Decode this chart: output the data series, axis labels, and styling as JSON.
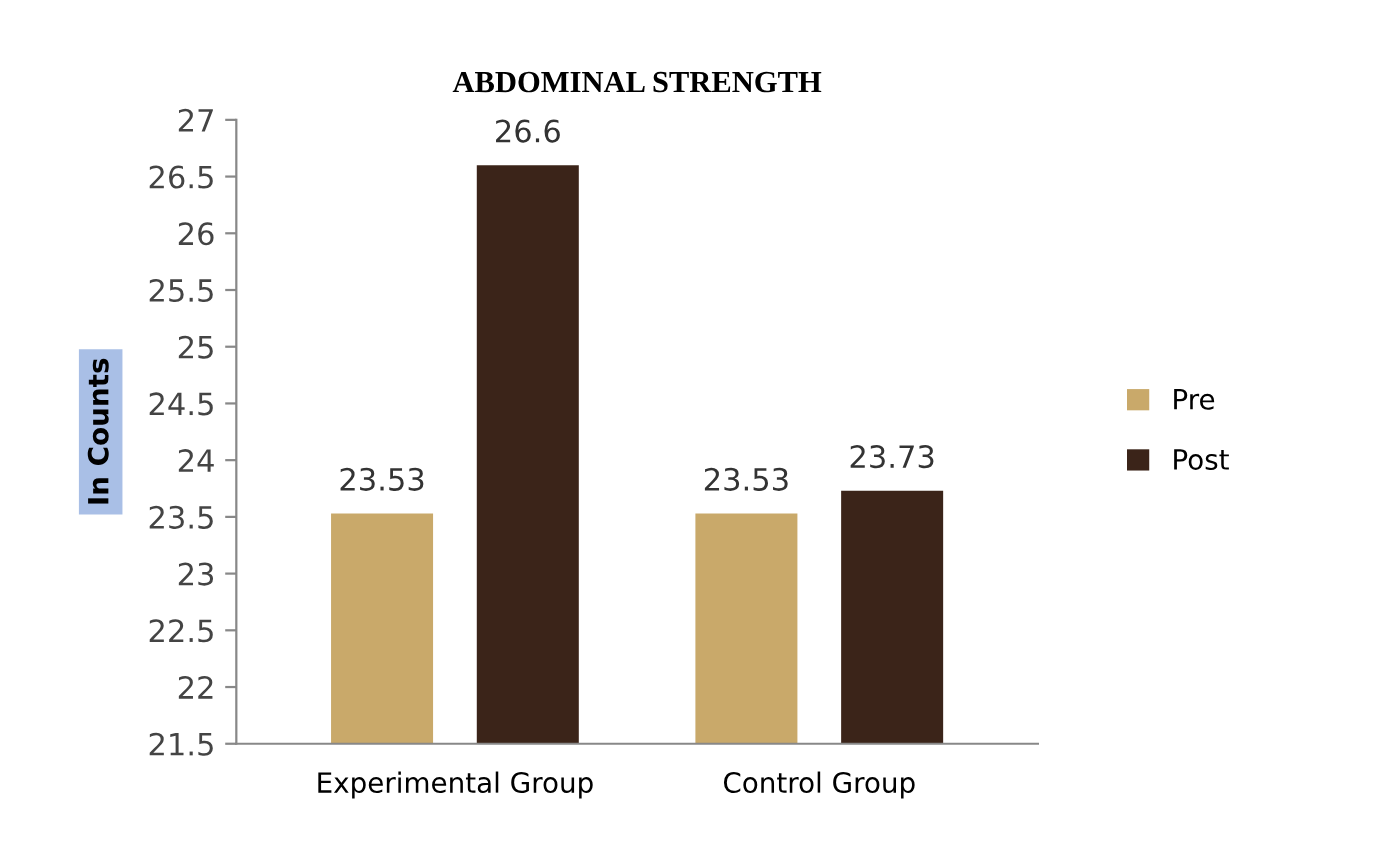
{
  "chart_data": {
    "type": "bar",
    "title": "ABDOMINAL STRENGTH",
    "ylabel": "In Counts",
    "categories": [
      "Experimental Group",
      "Control Group"
    ],
    "series": [
      {
        "name": "Pre",
        "color": "#c9a96a",
        "values": [
          23.53,
          23.53
        ]
      },
      {
        "name": "Post",
        "color": "#3b2419",
        "values": [
          26.6,
          23.73
        ]
      }
    ],
    "ylim": [
      21.5,
      27
    ],
    "yticks": [
      21.5,
      22,
      22.5,
      23,
      23.5,
      24,
      24.5,
      25,
      25.5,
      26,
      26.5,
      27
    ],
    "data_labels": true,
    "grid": false,
    "legend": "right"
  }
}
